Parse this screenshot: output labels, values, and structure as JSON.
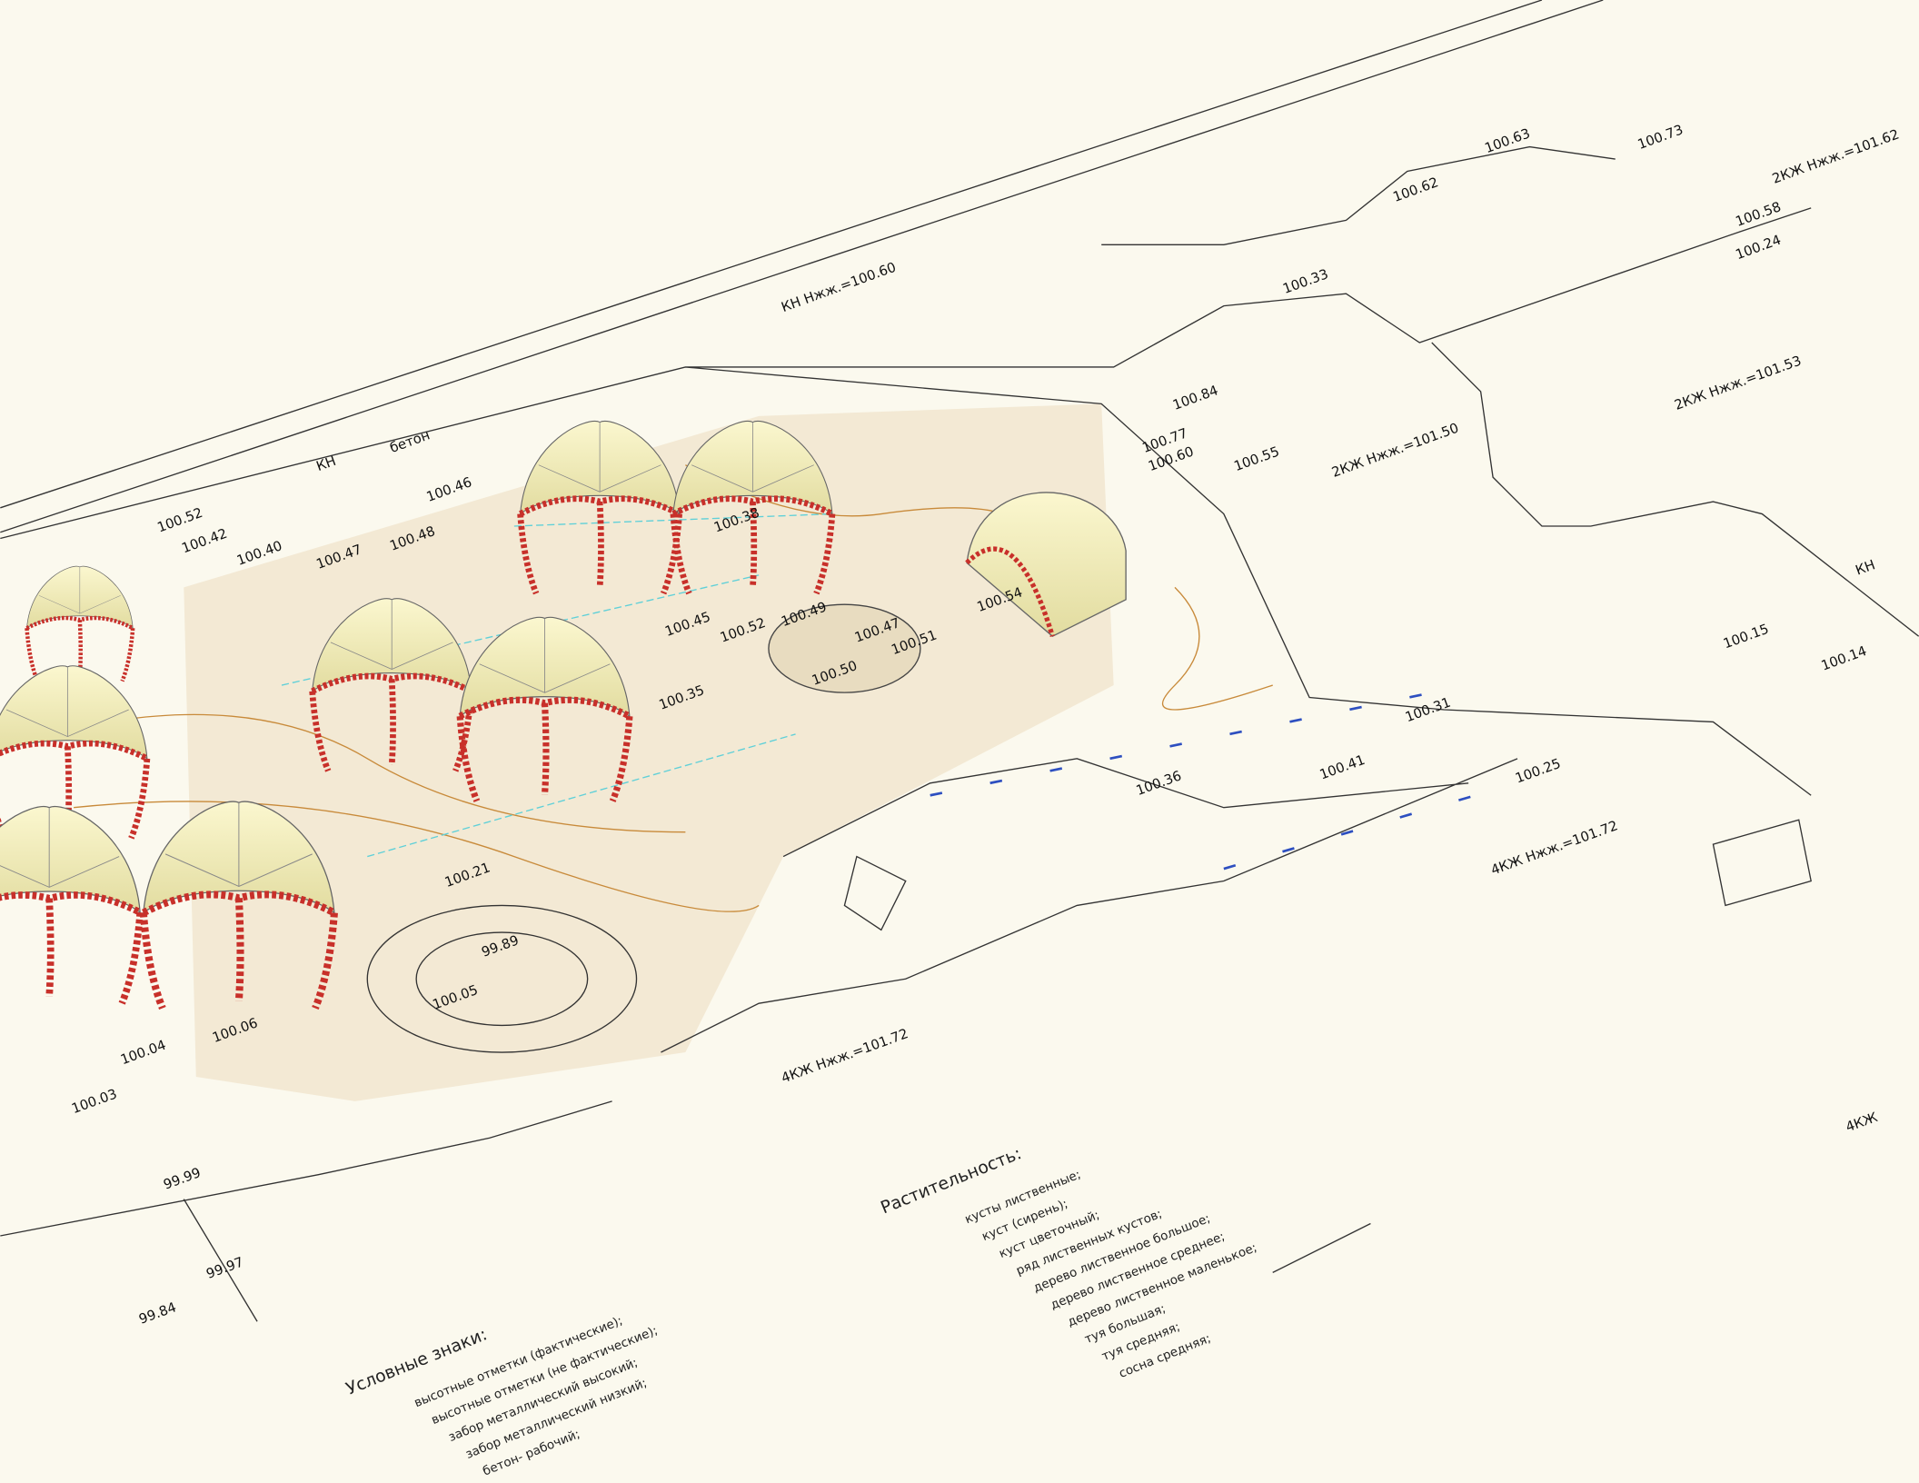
{
  "elevations": [
    "100.52",
    "100.42",
    "100.40",
    "100.47",
    "100.48",
    "100.46",
    "100.38",
    "100.33",
    "100.45",
    "100.52",
    "100.50",
    "100.51",
    "100.47",
    "100.49",
    "100.55",
    "100.84",
    "100.77",
    "100.60",
    "100.36",
    "100.31",
    "100.24",
    "100.15",
    "100.14",
    "100.25",
    "100.05",
    "100.06",
    "100.04",
    "99.89",
    "100.03",
    "99.99",
    "99.97",
    "99.84",
    "100.62",
    "100.58",
    "100.73",
    "100.63",
    "100.35",
    "100.41",
    "100.21",
    "100.54"
  ],
  "buildings": [
    "2КЖ Нжж.=101.62",
    "2КЖ Нжж.=101.50",
    "2КЖ Нжж.=101.53",
    "4КЖ Нжж.=101.72",
    "4КЖ Нжж.=101.72",
    "КН Нжж.=100.60",
    "КН",
    "бетон",
    "КН",
    "4КЖ"
  ],
  "legend_vegetation": {
    "title": "Растительность:",
    "items": [
      "кусты лиственные;",
      "куст (сирень);",
      "куст цветочный;",
      "ряд лиственных кустов;",
      "дерево лиственное большое;",
      "дерево лиственное среднее;",
      "дерево лиственное маленькое;",
      "туя большая;",
      "туя средняя;",
      "сосна средняя;"
    ]
  },
  "legend_symbols": {
    "title": "Условные знаки:",
    "items": [
      "высотные отметки (фактические);",
      "высотные отметки (не фактические);",
      "забор металлический высокий;",
      "забор металлический низкий;",
      "бетон- рабочий;"
    ]
  }
}
